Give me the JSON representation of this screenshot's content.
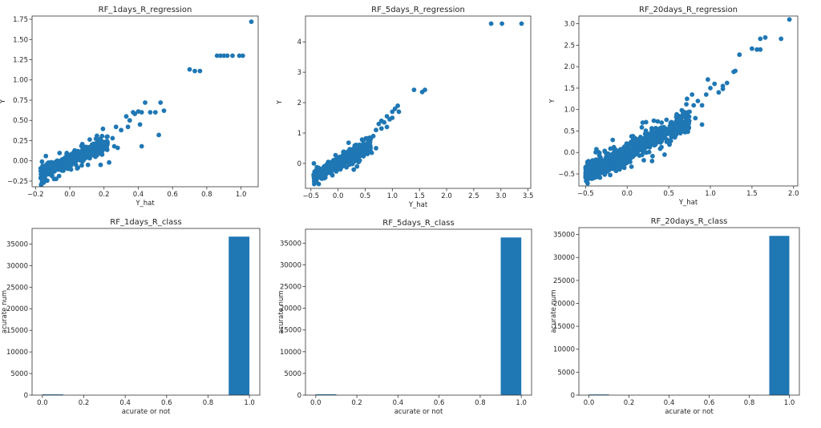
{
  "colors": {
    "accent": "#1f77b4",
    "axis": "#333333",
    "text": "#262626"
  },
  "chart_data": [
    {
      "type": "scatter",
      "title": "RF_1days_R_regression",
      "xlabel": "Y_hat",
      "ylabel": "Y",
      "xlim": [
        -0.22,
        1.1
      ],
      "ylim": [
        -0.32,
        1.79
      ],
      "xticks": [
        "−0.2",
        "0.0",
        "0.2",
        "0.4",
        "0.6",
        "0.8",
        "1.0"
      ],
      "xtick_values": [
        -0.2,
        0.0,
        0.2,
        0.4,
        0.6,
        0.8,
        1.0
      ],
      "yticks": [
        "−0.25",
        "0.00",
        "0.25",
        "0.50",
        "0.75",
        "1.00",
        "1.25",
        "1.50",
        "1.75"
      ],
      "ytick_values": [
        -0.25,
        0.0,
        0.25,
        0.5,
        0.75,
        1.0,
        1.25,
        1.5,
        1.75
      ],
      "cluster": {
        "x": [
          -0.17,
          0.22
        ],
        "slope": 1.0,
        "intercept": 0.0,
        "spread": 0.045,
        "n": 500
      },
      "points": [
        [
          0.34,
          0.42
        ],
        [
          0.3,
          0.38
        ],
        [
          0.35,
          0.5
        ],
        [
          0.33,
          0.55
        ],
        [
          0.38,
          0.58
        ],
        [
          0.4,
          0.61
        ],
        [
          0.42,
          0.6
        ],
        [
          0.44,
          0.72
        ],
        [
          0.37,
          0.6
        ],
        [
          0.53,
          0.72
        ],
        [
          0.5,
          0.6
        ],
        [
          0.41,
          0.45
        ],
        [
          0.47,
          0.6
        ],
        [
          0.52,
          0.32
        ],
        [
          0.42,
          0.18
        ],
        [
          0.27,
          0.42
        ],
        [
          0.25,
          0.28
        ],
        [
          0.22,
          0.3
        ],
        [
          0.26,
          0.18
        ],
        [
          0.28,
          0.16
        ],
        [
          0.19,
          0.22
        ],
        [
          0.12,
          0.08
        ],
        [
          0.15,
          0.05
        ],
        [
          0.23,
          -0.02
        ],
        [
          0.18,
          -0.05
        ],
        [
          0.55,
          0.62
        ],
        [
          0.7,
          1.13
        ],
        [
          0.73,
          1.11
        ],
        [
          0.76,
          1.11
        ],
        [
          0.86,
          1.3
        ],
        [
          0.88,
          1.3
        ],
        [
          0.9,
          1.3
        ],
        [
          0.92,
          1.3
        ],
        [
          0.95,
          1.3
        ],
        [
          0.99,
          1.3
        ],
        [
          1.01,
          1.3
        ],
        [
          1.06,
          1.72
        ]
      ]
    },
    {
      "type": "scatter",
      "title": "RF_5days_R_regression",
      "xlabel": "Y_hat",
      "ylabel": "Y",
      "xlim": [
        -0.6,
        3.55
      ],
      "ylim": [
        -0.82,
        4.85
      ],
      "xticks": [
        "−0.5",
        "0.0",
        "0.5",
        "1.0",
        "1.5",
        "2.0",
        "2.5",
        "3.0",
        "3.5"
      ],
      "xtick_values": [
        -0.5,
        0.0,
        0.5,
        1.0,
        1.5,
        2.0,
        2.5,
        3.0,
        3.5
      ],
      "yticks": [
        "0",
        "1",
        "2",
        "3",
        "4"
      ],
      "ytick_values": [
        0,
        1,
        2,
        3,
        4
      ],
      "cluster": {
        "x": [
          -0.45,
          0.6
        ],
        "slope": 1.0,
        "intercept": 0.0,
        "spread": 0.12,
        "n": 450
      },
      "points": [
        [
          0.75,
          1.3
        ],
        [
          0.8,
          1.4
        ],
        [
          0.85,
          1.35
        ],
        [
          0.9,
          1.55
        ],
        [
          0.95,
          1.45
        ],
        [
          1.0,
          1.7
        ],
        [
          1.05,
          1.8
        ],
        [
          1.1,
          1.9
        ],
        [
          1.12,
          1.7
        ],
        [
          1.0,
          1.5
        ],
        [
          0.9,
          1.2
        ],
        [
          0.8,
          1.15
        ],
        [
          0.7,
          1.1
        ],
        [
          0.65,
          0.9
        ],
        [
          0.6,
          0.8
        ],
        [
          0.55,
          0.7
        ],
        [
          0.5,
          0.5
        ],
        [
          0.62,
          0.35
        ],
        [
          0.7,
          0.5
        ],
        [
          0.35,
          -0.1
        ],
        [
          0.4,
          0.1
        ],
        [
          1.4,
          2.42
        ],
        [
          1.55,
          2.35
        ],
        [
          1.6,
          2.42
        ],
        [
          2.82,
          4.6
        ],
        [
          3.02,
          4.6
        ],
        [
          3.38,
          4.6
        ]
      ]
    },
    {
      "type": "scatter",
      "title": "RF_20days_R_regression",
      "xlabel": "Y_hat",
      "ylabel": "Y",
      "xlim": [
        -0.58,
        2.05
      ],
      "ylim": [
        -0.78,
        3.18
      ],
      "xticks": [
        "−0.5",
        "0.0",
        "0.5",
        "1.0",
        "1.5",
        "2.0"
      ],
      "xtick_values": [
        -0.5,
        0.0,
        0.5,
        1.0,
        1.5,
        2.0
      ],
      "yticks": [
        "−0.5",
        "0.0",
        "0.5",
        "1.0",
        "1.5",
        "2.0",
        "2.5",
        "3.0"
      ],
      "ytick_values": [
        -0.5,
        0.0,
        0.5,
        1.0,
        1.5,
        2.0,
        2.5,
        3.0
      ],
      "cluster": {
        "x": [
          -0.5,
          0.75
        ],
        "slope": 1.0,
        "intercept": 0.0,
        "spread": 0.12,
        "n": 750
      },
      "points": [
        [
          0.75,
          0.95
        ],
        [
          0.8,
          1.1
        ],
        [
          0.85,
          1.2
        ],
        [
          0.9,
          1.1
        ],
        [
          0.95,
          1.35
        ],
        [
          0.78,
          1.35
        ],
        [
          0.72,
          1.25
        ],
        [
          1.0,
          1.5
        ],
        [
          1.05,
          1.6
        ],
        [
          0.97,
          1.7
        ],
        [
          1.1,
          1.4
        ],
        [
          1.15,
          1.55
        ],
        [
          1.2,
          1.62
        ],
        [
          1.15,
          1.48
        ],
        [
          0.68,
          0.55
        ],
        [
          0.62,
          0.5
        ],
        [
          0.82,
          0.8
        ],
        [
          0.9,
          0.65
        ],
        [
          0.45,
          -0.05
        ],
        [
          0.3,
          -0.2
        ],
        [
          0.2,
          -0.18
        ],
        [
          1.3,
          1.9
        ],
        [
          1.35,
          2.28
        ],
        [
          1.5,
          2.42
        ],
        [
          1.56,
          2.4
        ],
        [
          1.6,
          2.4
        ],
        [
          1.6,
          2.65
        ],
        [
          1.66,
          2.68
        ],
        [
          1.85,
          2.65
        ],
        [
          1.95,
          3.1
        ],
        [
          1.28,
          1.88
        ]
      ]
    },
    {
      "type": "bar",
      "title": "RF_1days_R_class",
      "xlabel": "acurate or not",
      "ylabel": "acurate num",
      "xlim": [
        -0.05,
        1.05
      ],
      "ylim": [
        0,
        38600
      ],
      "xticks": [
        "0.0",
        "0.2",
        "0.4",
        "0.6",
        "0.8",
        "1.0"
      ],
      "xtick_values": [
        0.0,
        0.2,
        0.4,
        0.6,
        0.8,
        1.0
      ],
      "yticks": [
        "0",
        "5000",
        "10000",
        "15000",
        "20000",
        "25000",
        "30000",
        "35000"
      ],
      "ytick_values": [
        0,
        5000,
        10000,
        15000,
        20000,
        25000,
        30000,
        35000
      ],
      "bars": [
        {
          "x0": 0.0,
          "x1": 0.1,
          "value": 180
        },
        {
          "x0": 0.9,
          "x1": 1.0,
          "value": 36700
        }
      ]
    },
    {
      "type": "bar",
      "title": "RF_5days_R_class",
      "xlabel": "acurate or not",
      "ylabel": "acurate num",
      "xlim": [
        -0.05,
        1.05
      ],
      "ylim": [
        0,
        38200
      ],
      "xticks": [
        "0.0",
        "0.2",
        "0.4",
        "0.6",
        "0.8",
        "1.0"
      ],
      "xtick_values": [
        0.0,
        0.2,
        0.4,
        0.6,
        0.8,
        1.0
      ],
      "yticks": [
        "0",
        "5000",
        "10000",
        "15000",
        "20000",
        "25000",
        "30000",
        "35000"
      ],
      "ytick_values": [
        0,
        5000,
        10000,
        15000,
        20000,
        25000,
        30000,
        35000
      ],
      "bars": [
        {
          "x0": 0.0,
          "x1": 0.1,
          "value": 200
        },
        {
          "x0": 0.9,
          "x1": 1.0,
          "value": 36300
        }
      ]
    },
    {
      "type": "bar",
      "title": "RF_20days_R_class",
      "xlabel": "acurate or not",
      "ylabel": "acurate num",
      "xlim": [
        -0.05,
        1.05
      ],
      "ylim": [
        0,
        36500
      ],
      "xticks": [
        "0.0",
        "0.2",
        "0.4",
        "0.6",
        "0.8",
        "1.0"
      ],
      "xtick_values": [
        0.0,
        0.2,
        0.4,
        0.6,
        0.8,
        1.0
      ],
      "yticks": [
        "0",
        "5000",
        "10000",
        "15000",
        "20000",
        "25000",
        "30000",
        "35000"
      ],
      "ytick_values": [
        0,
        5000,
        10000,
        15000,
        20000,
        25000,
        30000,
        35000
      ],
      "bars": [
        {
          "x0": 0.0,
          "x1": 0.1,
          "value": 150
        },
        {
          "x0": 0.9,
          "x1": 1.0,
          "value": 34700
        }
      ]
    }
  ]
}
